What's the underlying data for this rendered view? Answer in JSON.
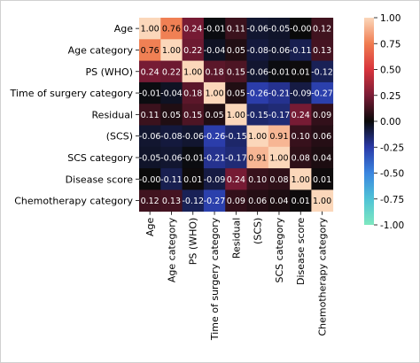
{
  "chart_data": {
    "type": "heatmap",
    "rows": [
      "Age",
      "Age category",
      "PS (WHO)",
      "Time of surgery category",
      "Residual",
      "(SCS)",
      "SCS category",
      "Disease score",
      "Chemotherapy category"
    ],
    "columns": [
      "Age",
      "Age category",
      "PS (WHO)",
      "Time of surgery category",
      "Residual",
      "(SCS)",
      "SCS category",
      "Disease score",
      "Chemotherapy category"
    ],
    "values": [
      [
        1.0,
        0.76,
        0.24,
        -0.01,
        0.11,
        -0.06,
        -0.05,
        -0.0,
        0.12
      ],
      [
        0.76,
        1.0,
        0.22,
        -0.04,
        0.05,
        -0.08,
        -0.06,
        -0.11,
        0.13
      ],
      [
        0.24,
        0.22,
        1.0,
        0.18,
        0.15,
        -0.06,
        -0.01,
        0.01,
        -0.12
      ],
      [
        -0.01,
        -0.04,
        0.18,
        1.0,
        0.05,
        -0.26,
        -0.21,
        -0.09,
        -0.27
      ],
      [
        0.11,
        0.05,
        0.15,
        0.05,
        1.0,
        -0.15,
        -0.17,
        0.24,
        0.09
      ],
      [
        -0.06,
        -0.08,
        -0.06,
        -0.26,
        -0.15,
        1.0,
        0.91,
        0.1,
        0.06
      ],
      [
        -0.05,
        -0.06,
        -0.01,
        -0.21,
        -0.17,
        0.91,
        1.0,
        0.08,
        0.04
      ],
      [
        -0.0,
        -0.11,
        0.01,
        -0.09,
        0.24,
        0.1,
        0.08,
        1.0,
        0.01
      ],
      [
        0.12,
        0.13,
        -0.12,
        -0.27,
        0.09,
        0.06,
        0.04,
        0.01,
        1.0
      ]
    ],
    "value_labels": [
      [
        "1.00",
        "0.76",
        "0.24",
        "-0.01",
        "0.11",
        "-0.06",
        "-0.05",
        "-0.00",
        "0.12"
      ],
      [
        "0.76",
        "1.00",
        "0.22",
        "-0.04",
        "0.05",
        "-0.08",
        "-0.06",
        "-0.11",
        "0.13"
      ],
      [
        "0.24",
        "0.22",
        "1.00",
        "0.18",
        "0.15",
        "-0.06",
        "-0.01",
        "0.01",
        "-0.12"
      ],
      [
        "-0.01",
        "-0.04",
        "0.18",
        "1.00",
        "0.05",
        "-0.26",
        "-0.21",
        "-0.09",
        "-0.27"
      ],
      [
        "0.11",
        "0.05",
        "0.15",
        "0.05",
        "1.00",
        "-0.15",
        "-0.17",
        "0.24",
        "0.09"
      ],
      [
        "-0.06",
        "-0.08",
        "-0.06",
        "-0.26",
        "-0.15",
        "1.00",
        "0.91",
        "0.10",
        "0.06"
      ],
      [
        "-0.05",
        "-0.06",
        "-0.01",
        "-0.21",
        "-0.17",
        "0.91",
        "1.00",
        "0.08",
        "0.04"
      ],
      [
        "-0.00",
        "-0.11",
        "0.01",
        "-0.09",
        "0.24",
        "0.10",
        "0.08",
        "1.00",
        "0.01"
      ],
      [
        "0.12",
        "0.13",
        "-0.12",
        "-0.27",
        "0.09",
        "0.06",
        "0.04",
        "0.01",
        "1.00"
      ]
    ],
    "vmin": -1.0,
    "vmax": 1.0,
    "colorbar_ticks": [
      "1.00",
      "0.75",
      "0.50",
      "0.25",
      "0.00",
      "-0.25",
      "-0.50",
      "-0.75",
      "-1.00"
    ],
    "colorbar_tick_values": [
      1.0,
      0.75,
      0.5,
      0.25,
      0.0,
      -0.25,
      -0.5,
      -0.75,
      -1.0
    ],
    "colormap_stops": [
      {
        "v": -1.0,
        "color": "#7ee8c0"
      },
      {
        "v": -0.75,
        "color": "#4fc3d6"
      },
      {
        "v": -0.5,
        "color": "#3a86e0"
      },
      {
        "v": -0.25,
        "color": "#2a3aa8"
      },
      {
        "v": 0.0,
        "color": "#0a0a0a"
      },
      {
        "v": 0.25,
        "color": "#7a1c36"
      },
      {
        "v": 0.5,
        "color": "#d8343c"
      },
      {
        "v": 0.75,
        "color": "#f07c50"
      },
      {
        "v": 1.0,
        "color": "#fbd7ba"
      }
    ]
  }
}
